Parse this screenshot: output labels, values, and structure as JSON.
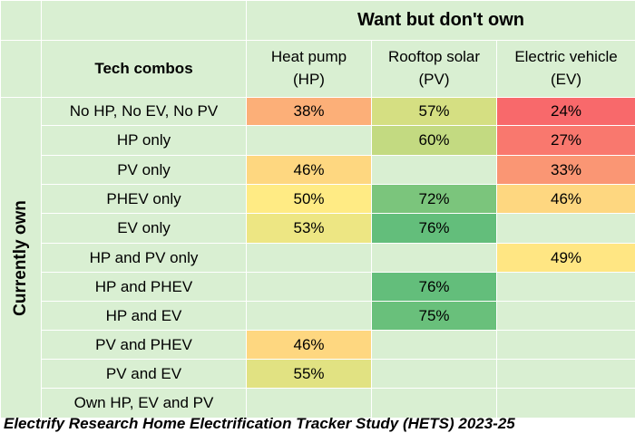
{
  "chart_data": {
    "type": "table",
    "header_title": "Want but don't own",
    "row_group_label": "Currently own",
    "row_header_label": "Tech combos",
    "columns": [
      {
        "line1": "Heat pump",
        "line2": "(HP)"
      },
      {
        "line1": "Rooftop solar",
        "line2": "(PV)"
      },
      {
        "line1": "Electric vehicle",
        "line2": "(EV)"
      }
    ],
    "rows": [
      {
        "label": "No HP, No EV, No PV",
        "values": [
          38,
          57,
          24
        ],
        "display": [
          "38%",
          "57%",
          "24%"
        ]
      },
      {
        "label": "HP only",
        "values": [
          null,
          60,
          27
        ],
        "display": [
          "",
          "60%",
          "27%"
        ]
      },
      {
        "label": "PV  only",
        "values": [
          46,
          null,
          33
        ],
        "display": [
          "46%",
          "",
          "33%"
        ]
      },
      {
        "label": "PHEV only",
        "values": [
          50,
          72,
          46
        ],
        "display": [
          "50%",
          "72%",
          "46%"
        ]
      },
      {
        "label": "EV only",
        "values": [
          53,
          76,
          null
        ],
        "display": [
          "53%",
          "76%",
          ""
        ]
      },
      {
        "label": "HP and PV  only",
        "values": [
          null,
          null,
          49
        ],
        "display": [
          "",
          "",
          "49%"
        ]
      },
      {
        "label": "HP and PHEV",
        "values": [
          null,
          76,
          null
        ],
        "display": [
          "",
          "76%",
          ""
        ]
      },
      {
        "label": "HP and EV",
        "values": [
          null,
          75,
          null
        ],
        "display": [
          "",
          "75%",
          ""
        ]
      },
      {
        "label": "PV and PHEV",
        "values": [
          46,
          null,
          null
        ],
        "display": [
          "46%",
          "",
          ""
        ]
      },
      {
        "label": "PV and EV",
        "values": [
          55,
          null,
          null
        ],
        "display": [
          "55%",
          "",
          ""
        ]
      },
      {
        "label": "Own HP, EV and PV",
        "values": [
          null,
          null,
          null
        ],
        "display": [
          "",
          "",
          ""
        ]
      }
    ],
    "value_unit": "%",
    "color_scale": {
      "low": "#f8696b",
      "mid": "#ffeb84",
      "high": "#63be7b",
      "empty": "#d9efd2"
    }
  },
  "footer_text": "Electrify Research Home Electrification Tracker Study (HETS) 2023-25"
}
